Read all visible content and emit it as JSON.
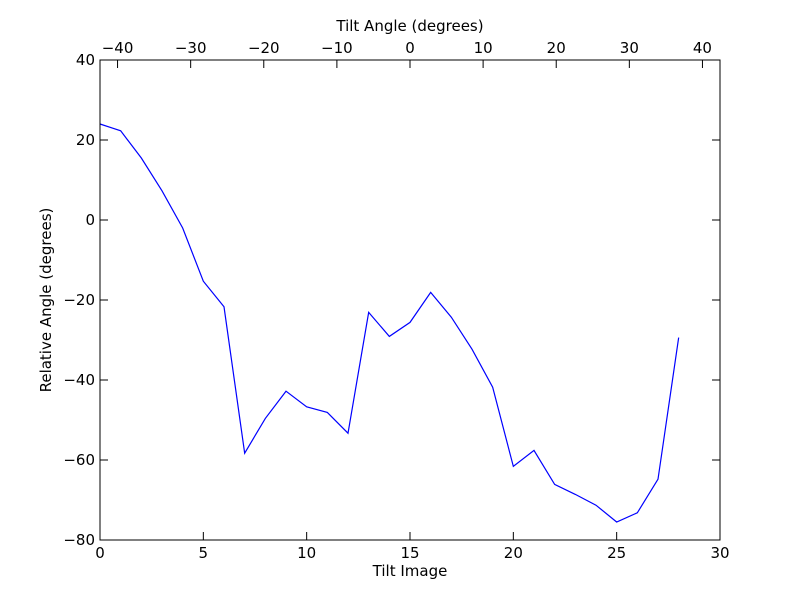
{
  "chart_data": {
    "type": "line",
    "xlabel": "Tilt Image",
    "ylabel": "Relative Angle (degrees)",
    "top_xlabel": "Tilt Angle (degrees)",
    "xlim": [
      0,
      30
    ],
    "ylim": [
      -80,
      40
    ],
    "top_xlim": [
      -42.4,
      42.4
    ],
    "x_ticks": [
      0,
      5,
      10,
      15,
      20,
      25,
      30
    ],
    "x_tick_labels": [
      "0",
      "5",
      "10",
      "15",
      "20",
      "25",
      "30"
    ],
    "y_ticks": [
      40,
      20,
      0,
      -20,
      -40,
      -60,
      -80
    ],
    "y_tick_labels": [
      "40",
      "20",
      "0",
      "−20",
      "−40",
      "−60",
      "−80"
    ],
    "top_ticks": [
      -40,
      -30,
      -20,
      -10,
      0,
      10,
      20,
      30,
      40
    ],
    "top_tick_labels": [
      "−40",
      "−30",
      "−20",
      "−10",
      "0",
      "10",
      "20",
      "30",
      "40"
    ],
    "grid": false,
    "line_color": "#0000ff",
    "series": [
      {
        "x": [
          0,
          1,
          2,
          3,
          4,
          5,
          6,
          7,
          8,
          9,
          10,
          11,
          12,
          13,
          14,
          15,
          16,
          17,
          18,
          19,
          20,
          21,
          22,
          23,
          24,
          25,
          26,
          27,
          28
        ],
        "values": [
          24,
          22.3,
          15.5,
          7.3,
          -2,
          -15.3,
          -21.7,
          -58.3,
          -49.6,
          -42.8,
          -46.7,
          -48.1,
          -53.3,
          -23.1,
          -29.1,
          -25.6,
          -18.1,
          -24.3,
          -32.3,
          -41.8,
          -61.6,
          -57.6,
          -66.1,
          -68.6,
          -71.3,
          -75.5,
          -73.2,
          -64.8,
          -29.4
        ]
      }
    ]
  }
}
